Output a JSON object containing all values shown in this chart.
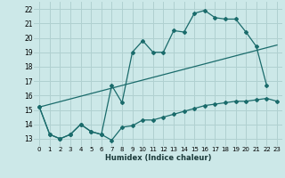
{
  "xlabel": "Humidex (Indice chaleur)",
  "bg_color": "#cce8e8",
  "grid_color": "#b0d0d0",
  "line_color": "#1a6b6b",
  "xlim": [
    -0.5,
    23.5
  ],
  "ylim": [
    12.5,
    22.5
  ],
  "yticks": [
    13,
    14,
    15,
    16,
    17,
    18,
    19,
    20,
    21,
    22
  ],
  "xticks": [
    0,
    1,
    2,
    3,
    4,
    5,
    6,
    7,
    8,
    9,
    10,
    11,
    12,
    13,
    14,
    15,
    16,
    17,
    18,
    19,
    20,
    21,
    22,
    23
  ],
  "line1_x": [
    0,
    1,
    2,
    3,
    4,
    5,
    6,
    7,
    8,
    9,
    10,
    11,
    12,
    13,
    14,
    15,
    16,
    17,
    18,
    19,
    20,
    21,
    22,
    23
  ],
  "line1_y": [
    15.2,
    13.3,
    13.0,
    13.3,
    14.0,
    13.5,
    13.3,
    12.9,
    13.8,
    13.9,
    14.3,
    14.3,
    14.5,
    14.7,
    14.9,
    15.1,
    15.3,
    15.4,
    15.5,
    15.6,
    15.6,
    15.7,
    15.8,
    15.6
  ],
  "line2_x": [
    0,
    1,
    2,
    3,
    4,
    5,
    6,
    7,
    8,
    9,
    10,
    11,
    12,
    13,
    14,
    15,
    16,
    17,
    18,
    19,
    20,
    21,
    22
  ],
  "line2_y": [
    15.2,
    13.3,
    13.0,
    13.3,
    14.0,
    13.5,
    13.3,
    16.7,
    15.5,
    19.0,
    19.8,
    19.0,
    19.0,
    20.5,
    20.4,
    21.7,
    21.9,
    21.4,
    21.3,
    21.3,
    20.4,
    19.4,
    16.7
  ],
  "line3_x": [
    0,
    23
  ],
  "line3_y": [
    15.2,
    19.5
  ]
}
